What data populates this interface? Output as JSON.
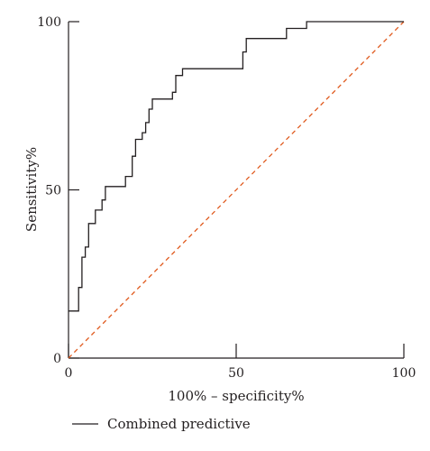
{
  "chart_data": {
    "type": "line",
    "title": "",
    "xlabel": "100% – specificity%",
    "ylabel": "Sensitivity%",
    "xlim": [
      0,
      100
    ],
    "ylim": [
      0,
      100
    ],
    "x_ticks": [
      0,
      50,
      100
    ],
    "y_ticks": [
      0,
      50,
      100
    ],
    "x_tick_labels": [
      "0",
      "50",
      "100"
    ],
    "y_tick_labels": [
      "0",
      "50",
      "100"
    ],
    "grid": false,
    "legend_placement": "bottom-left",
    "series": [
      {
        "name": "Combined predictive",
        "color": "#231f20",
        "style": "solid",
        "x": [
          0,
          3,
          3,
          4,
          4,
          5,
          5,
          6,
          6,
          8,
          8,
          10,
          10,
          11,
          11,
          17,
          17,
          19,
          19,
          20,
          20,
          22,
          22,
          23,
          23,
          24,
          24,
          25,
          25,
          31,
          31,
          32,
          32,
          34,
          34,
          52,
          52,
          53,
          53,
          65,
          65,
          71,
          71,
          100
        ],
        "y": [
          14,
          14,
          21,
          21,
          30,
          30,
          33,
          33,
          40,
          40,
          44,
          44,
          47,
          47,
          51,
          51,
          54,
          54,
          60,
          60,
          65,
          65,
          67,
          67,
          70,
          70,
          74,
          74,
          77,
          77,
          79,
          79,
          84,
          84,
          86,
          86,
          91,
          91,
          95,
          95,
          98,
          98,
          100,
          100
        ]
      },
      {
        "name": "",
        "color": "#e05a1e",
        "style": "dashed",
        "x": [
          0,
          100
        ],
        "y": [
          0,
          100
        ]
      }
    ]
  }
}
